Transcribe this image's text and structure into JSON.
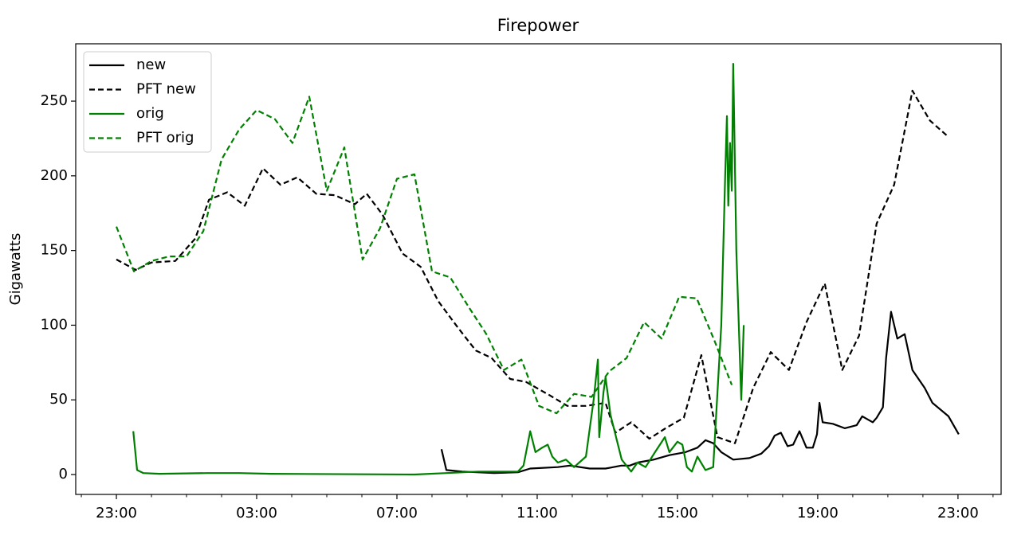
{
  "chart_data": {
    "type": "line",
    "title": "Firepower",
    "ylabel": "Gigawatts",
    "xlim": [
      21.84,
      48.23
    ],
    "ylim": [
      -13.3,
      288.4
    ],
    "xticks": [
      {
        "value": 23,
        "label": "23:00"
      },
      {
        "value": 27,
        "label": "03:00"
      },
      {
        "value": 31,
        "label": "07:00"
      },
      {
        "value": 35,
        "label": "11:00"
      },
      {
        "value": 39,
        "label": "15:00"
      },
      {
        "value": 43,
        "label": "19:00"
      },
      {
        "value": 47,
        "label": "23:00"
      }
    ],
    "xminorticks": [
      22,
      24,
      25,
      26,
      28,
      29,
      30,
      32,
      33,
      34,
      36,
      37,
      38,
      40,
      41,
      42,
      44,
      45,
      46,
      48
    ],
    "yticks": [
      0,
      50,
      100,
      150,
      200,
      250
    ],
    "legend": "upper left",
    "series": [
      {
        "name": "new",
        "color": "#000000",
        "dashed": false,
        "x": [
          32.27,
          32.41,
          32.86,
          33.77,
          34.45,
          34.8,
          35.59,
          35.93,
          36.5,
          36.95,
          37.4,
          37.64,
          37.86,
          38.32,
          38.77,
          39.23,
          39.57,
          39.8,
          40.02,
          40.25,
          40.59,
          41.05,
          41.39,
          41.61,
          41.77,
          41.95,
          42.14,
          42.3,
          42.48,
          42.68,
          42.86,
          42.98,
          43.05,
          43.14,
          43.43,
          43.77,
          44.11,
          44.27,
          44.57,
          44.68,
          44.86,
          44.95,
          45.09,
          45.27,
          45.48,
          45.7,
          46.05,
          46.27,
          46.73,
          47.02
        ],
        "values": [
          17,
          3,
          2,
          1,
          1.5,
          4,
          5,
          6,
          4,
          4,
          6,
          6,
          8,
          10,
          13,
          15,
          18,
          23,
          21,
          15,
          10,
          11,
          14,
          19,
          26,
          28,
          19,
          20,
          29,
          18,
          18,
          27,
          48,
          35,
          34,
          31,
          33,
          39,
          35,
          38,
          45,
          78,
          109,
          91,
          94,
          70,
          58,
          48,
          39,
          27
        ]
      },
      {
        "name": "PFT new",
        "color": "#000000",
        "dashed": true,
        "x": [
          23.0,
          23.55,
          24.0,
          24.68,
          25.25,
          25.64,
          26.16,
          26.66,
          27.18,
          27.68,
          28.16,
          28.7,
          29.23,
          29.8,
          30.14,
          30.59,
          31.16,
          31.68,
          32.18,
          32.75,
          33.25,
          33.7,
          34.23,
          34.68,
          35.36,
          35.86,
          36.39,
          36.95,
          37.23,
          37.68,
          38.2,
          38.66,
          39.18,
          39.68,
          40.14,
          40.64,
          41.16,
          41.66,
          42.18,
          42.68,
          43.2,
          43.7,
          44.18,
          44.68,
          45.18,
          45.7,
          46.2,
          46.73
        ],
        "values": [
          144,
          137,
          142,
          143,
          158,
          184,
          189,
          180,
          205,
          194,
          199,
          188,
          187,
          181,
          188,
          174,
          148,
          139,
          116,
          98,
          83,
          78,
          64,
          62,
          53,
          46,
          46,
          48,
          28,
          35,
          24,
          31,
          38,
          80,
          25,
          21,
          58,
          82,
          70,
          102,
          128,
          70,
          93,
          168,
          194,
          257,
          237,
          226
        ]
      },
      {
        "name": "orig",
        "color": "#008000",
        "dashed": false,
        "x": [
          23.48,
          23.59,
          23.77,
          24.23,
          25.59,
          26.5,
          27.41,
          31.5,
          32.41,
          33.32,
          34.0,
          34.45,
          34.61,
          34.8,
          34.95,
          35.14,
          35.3,
          35.43,
          35.59,
          35.82,
          36.05,
          36.39,
          36.61,
          36.73,
          36.77,
          36.89,
          36.95,
          37.09,
          37.41,
          37.68,
          37.86,
          38.09,
          38.36,
          38.64,
          38.77,
          39.0,
          39.14,
          39.27,
          39.41,
          39.57,
          39.8,
          40.02,
          40.25,
          40.36,
          40.41,
          40.45,
          40.5,
          40.55,
          40.59,
          40.68,
          40.82,
          40.89
        ],
        "values": [
          29,
          3,
          1,
          0.5,
          1,
          1,
          0.5,
          0,
          1,
          2,
          2,
          2,
          6,
          29,
          15,
          18,
          20,
          12,
          8,
          10,
          5,
          12,
          50,
          77,
          25,
          55,
          65,
          40,
          10,
          2,
          8,
          5,
          15,
          25,
          15,
          22,
          20,
          5,
          2,
          12,
          3,
          5,
          100,
          200,
          240,
          180,
          222,
          190,
          275,
          150,
          50,
          100
        ]
      },
      {
        "name": "PFT orig",
        "color": "#008000",
        "dashed": true,
        "x": [
          23.0,
          23.5,
          24.0,
          24.5,
          25.0,
          25.48,
          26.0,
          26.5,
          27.0,
          27.52,
          28.02,
          28.5,
          29.0,
          29.5,
          30.02,
          30.52,
          31.0,
          31.5,
          32.0,
          32.52,
          33.05,
          33.55,
          34.05,
          34.55,
          35.05,
          35.55,
          36.05,
          36.55,
          37.05,
          37.55,
          38.05,
          38.55,
          39.05,
          39.55,
          40.05,
          40.55
        ],
        "values": [
          166,
          136,
          143,
          146,
          146,
          163,
          211,
          231,
          244,
          238,
          222,
          253,
          190,
          219,
          144,
          165,
          198,
          201,
          136,
          132,
          112,
          94,
          70,
          77,
          46,
          41,
          54,
          52,
          69,
          78,
          102,
          91,
          119,
          118,
          90,
          60
        ]
      }
    ]
  }
}
